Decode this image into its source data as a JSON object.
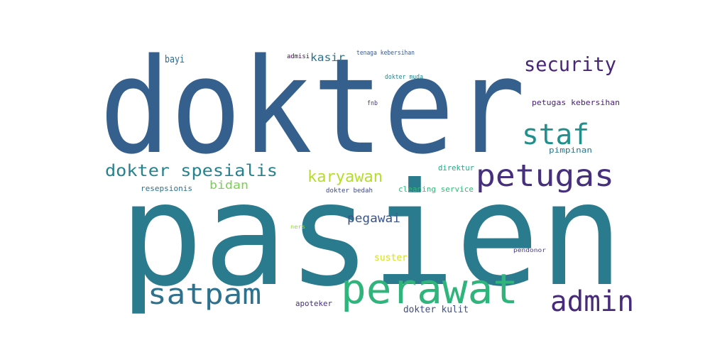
{
  "word_cloud": {
    "words": [
      {
        "text": "dokter",
        "color": "#35608d"
      },
      {
        "text": "pasien",
        "color": "#2a7b8e"
      },
      {
        "text": "perawat",
        "color": "#2fb47c"
      },
      {
        "text": "petugas",
        "color": "#462f7c"
      },
      {
        "text": "satpam",
        "color": "#2d718e"
      },
      {
        "text": "admin",
        "color": "#472a79"
      },
      {
        "text": "staf",
        "color": "#21908c"
      },
      {
        "text": "security",
        "color": "#482576"
      },
      {
        "text": "dokter spesialis",
        "color": "#27818e"
      },
      {
        "text": "karyawan",
        "color": "#b5de2b"
      },
      {
        "text": "bidan",
        "color": "#7ad151"
      },
      {
        "text": "pegawai",
        "color": "#3b528b"
      },
      {
        "text": "kasir",
        "color": "#2c728e"
      },
      {
        "text": "bayi",
        "color": "#2f6c8e"
      },
      {
        "text": "suster",
        "color": "#d5e21a"
      },
      {
        "text": "apoteker",
        "color": "#46307e"
      },
      {
        "text": "dokter kulit",
        "color": "#3e4c8a"
      },
      {
        "text": "petugas kebersihan",
        "color": "#482173"
      },
      {
        "text": "pimpinan",
        "color": "#2b758e"
      },
      {
        "text": "direktur",
        "color": "#22a884"
      },
      {
        "text": "cleaning service",
        "color": "#35b779"
      },
      {
        "text": "resepsionis",
        "color": "#2c718e"
      },
      {
        "text": "dokter bedah",
        "color": "#3f4889"
      },
      {
        "text": "admisi",
        "color": "#46085c"
      },
      {
        "text": "tenaga kebersihan",
        "color": "#39568c"
      },
      {
        "text": "dokter muda",
        "color": "#25838e"
      },
      {
        "text": "fnb",
        "color": "#443983"
      },
      {
        "text": "ners",
        "color": "#95d840"
      },
      {
        "text": "pendonor",
        "color": "#453882"
      }
    ]
  }
}
